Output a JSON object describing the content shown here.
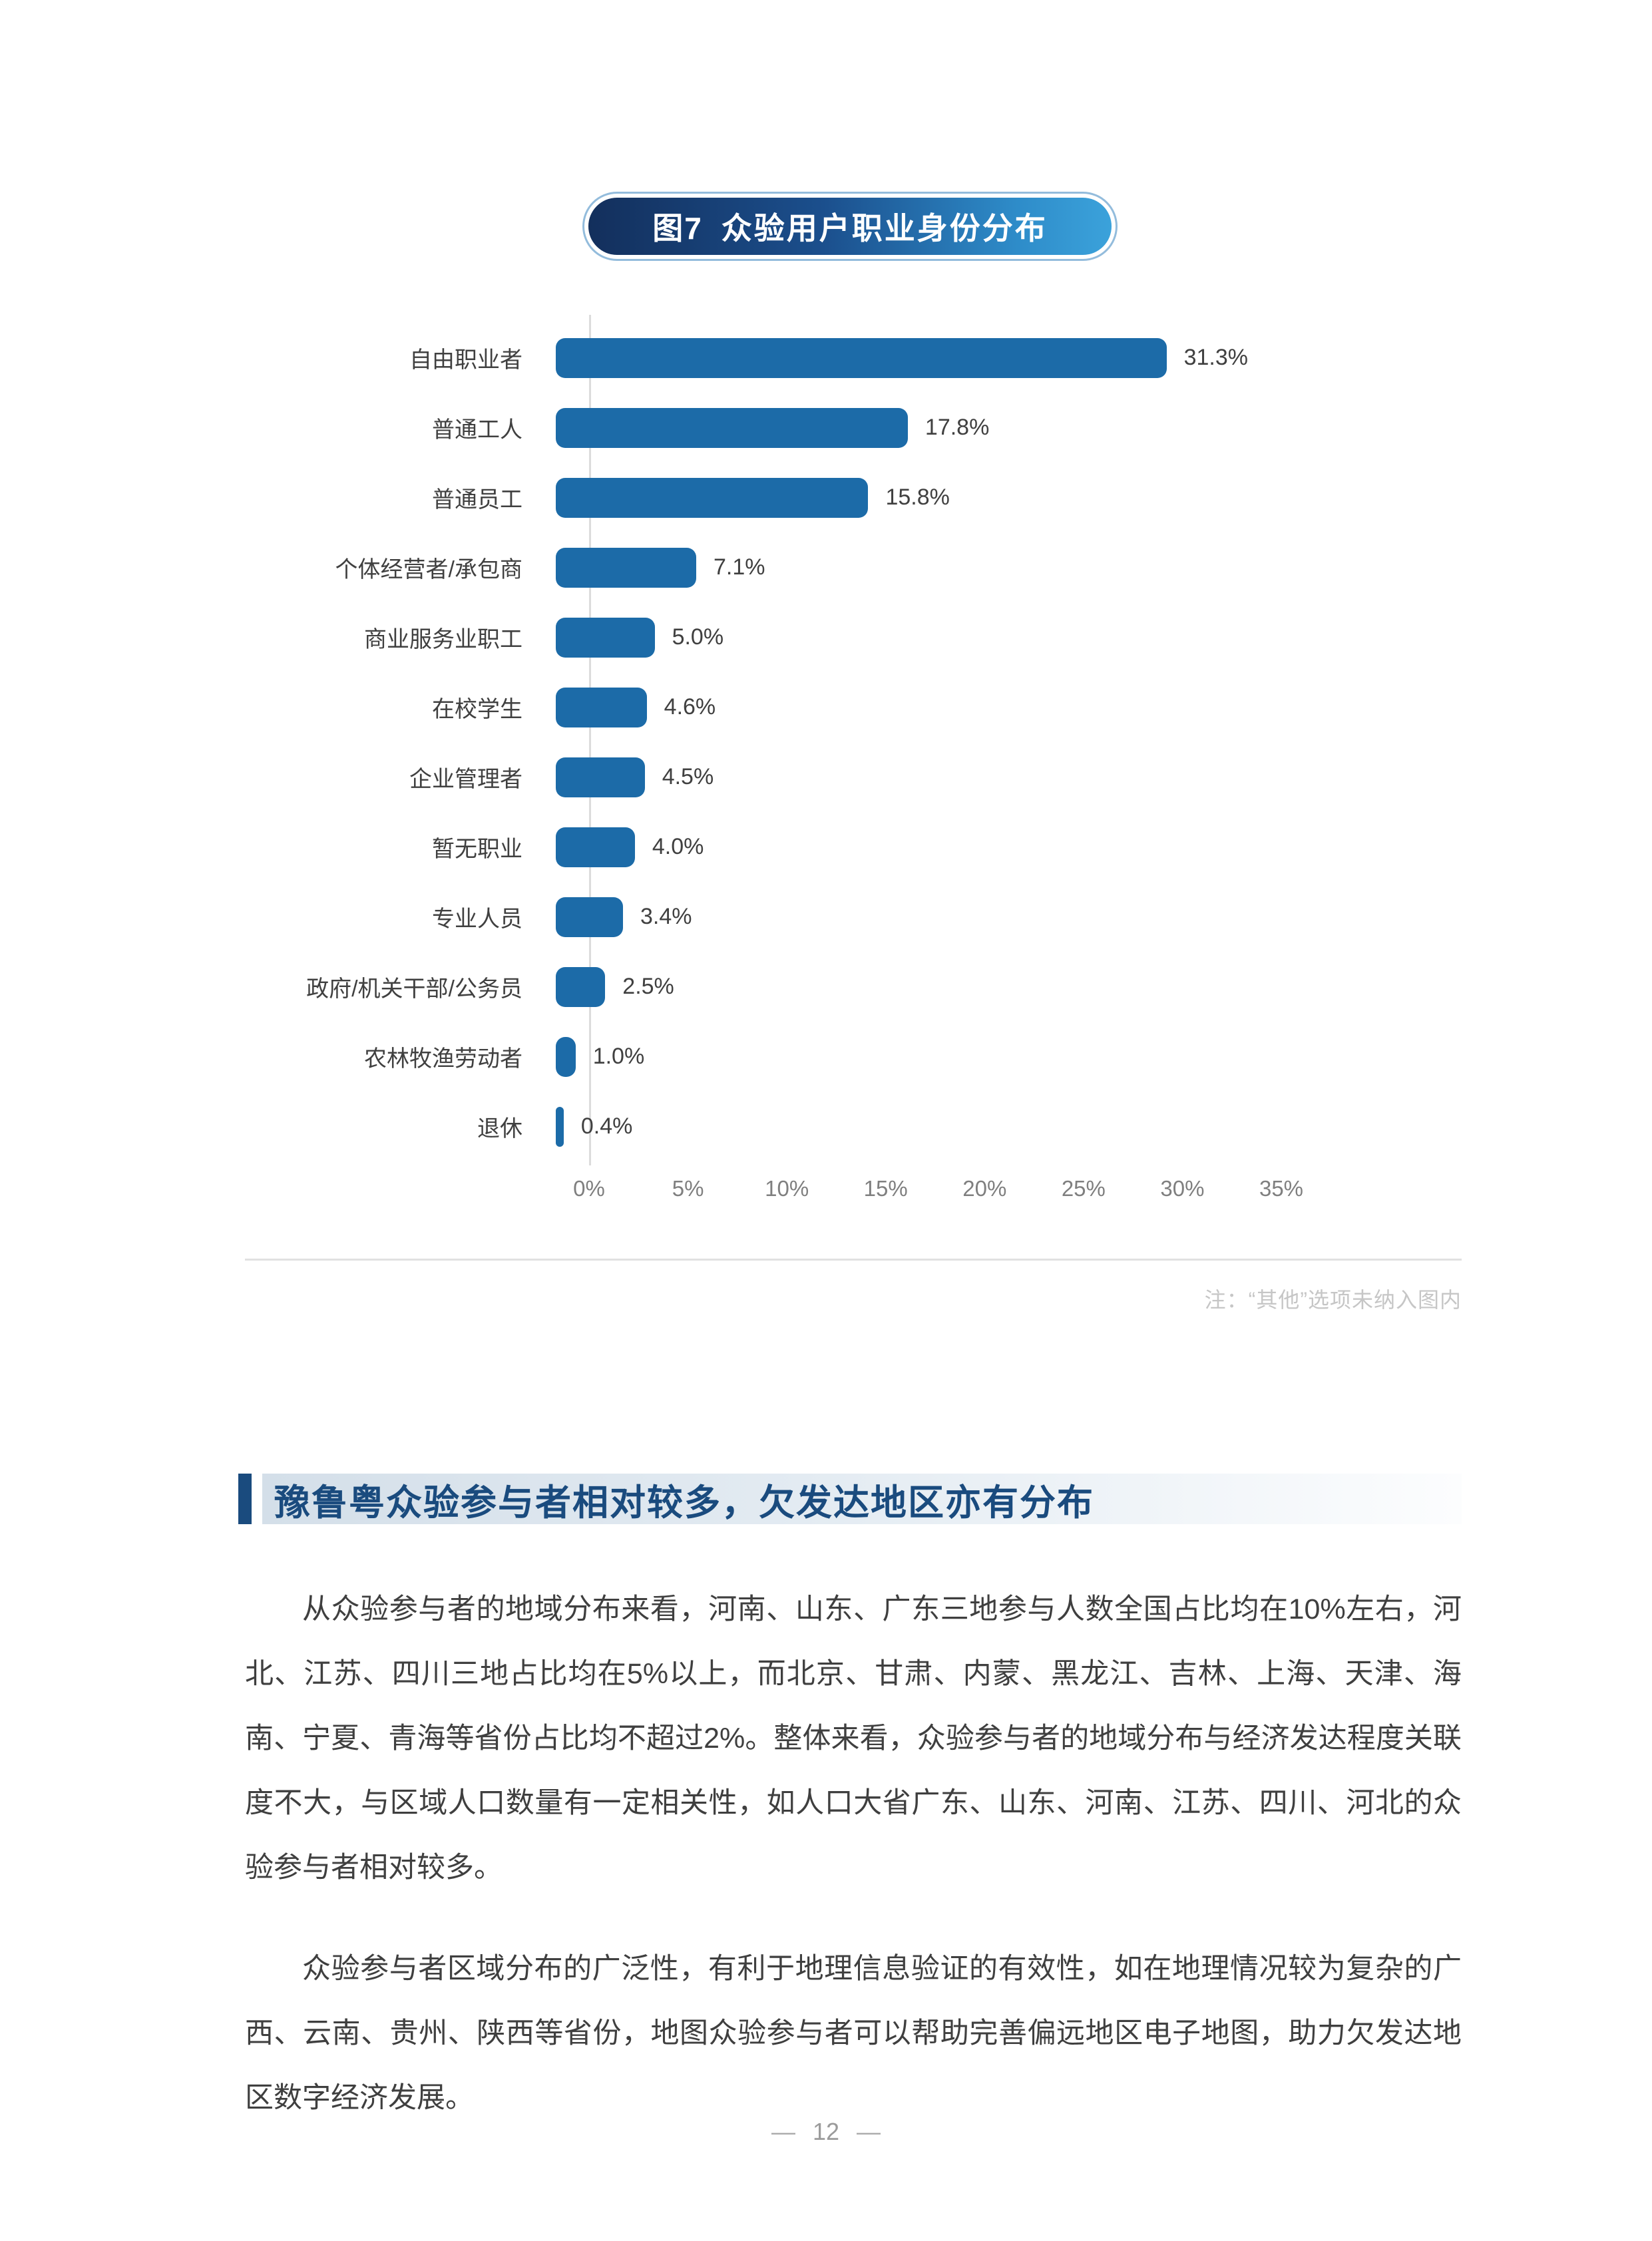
{
  "figure": {
    "badge_prefix": "图7",
    "badge_title": "众验用户职业身份分布",
    "note": "注：“其他”选项未纳入图内"
  },
  "chart_data": {
    "type": "bar",
    "orientation": "horizontal",
    "title": "众验用户职业身份分布",
    "categories": [
      "自由职业者",
      "普通工人",
      "普通员工",
      "个体经营者/承包商",
      "商业服务业职工",
      "在校学生",
      "企业管理者",
      "暂无职业",
      "专业人员",
      "政府/机关干部/公务员",
      "农林牧渔劳动者",
      "退休"
    ],
    "values": [
      31.3,
      17.8,
      15.8,
      7.1,
      5.0,
      4.6,
      4.5,
      4.0,
      3.4,
      2.5,
      1.0,
      0.4
    ],
    "value_labels": [
      "31.3%",
      "17.8%",
      "15.8%",
      "7.1%",
      "5.0%",
      "4.6%",
      "4.5%",
      "4.0%",
      "3.4%",
      "2.5%",
      "1.0%",
      "0.4%"
    ],
    "xlabel": "",
    "ylabel": "",
    "xlim": [
      0,
      35
    ],
    "x_ticks": [
      "0%",
      "5%",
      "10%",
      "15%",
      "20%",
      "25%",
      "30%",
      "35%"
    ],
    "x_tick_values": [
      0,
      5,
      10,
      15,
      20,
      25,
      30,
      35
    ],
    "grid": false,
    "legend": false,
    "bar_color": "#1C6BA8"
  },
  "section": {
    "heading": "豫鲁粤众验参与者相对较多，欠发达地区亦有分布",
    "paragraphs": [
      "从众验参与者的地域分布来看，河南、山东、广东三地参与人数全国占比均在10%左右，河北、江苏、四川三地占比均在5%以上，而北京、甘肃、内蒙、黑龙江、吉林、上海、天津、海南、宁夏、青海等省份占比均不超过2%。整体来看，众验参与者的地域分布与经济发达程度关联度不大，与区域人口数量有一定相关性，如人口大省广东、山东、河南、江苏、四川、河北的众验参与者相对较多。",
      "众验参与者区域分布的广泛性，有利于地理信息验证的有效性，如在地理情况较为复杂的广西、云南、贵州、陕西等省份，地图众验参与者可以帮助完善偏远地区电子地图，助力欠发达地区数字经济发展。"
    ]
  },
  "footer": {
    "dash": "—",
    "page_number": "12"
  }
}
